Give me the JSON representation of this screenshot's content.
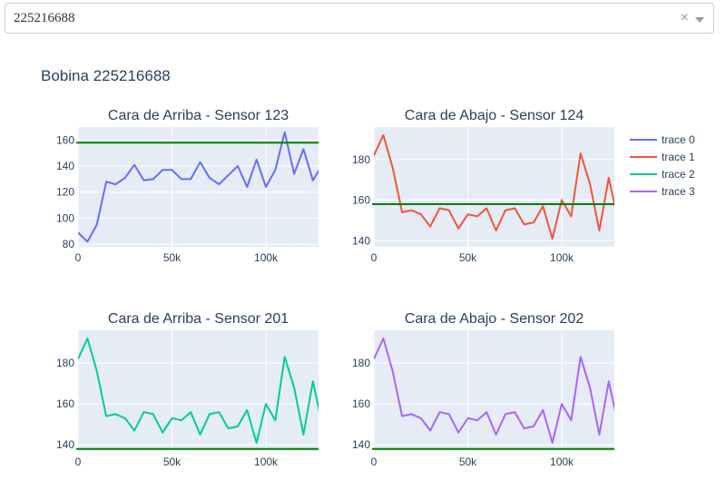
{
  "dropdown": {
    "value": "225216688",
    "clear_glyph": "×",
    "arrow_icon": "caret-down-icon"
  },
  "figure_title": "Bobina 225216688",
  "chart_data": [
    {
      "type": "line",
      "title": "Cara de Arriba - Sensor 123",
      "series": [
        {
          "name": "trace 0",
          "color": "#636efa",
          "x": [
            0,
            5000,
            10000,
            15000,
            20000,
            25000,
            30000,
            35000,
            40000,
            45000,
            50000,
            55000,
            60000,
            65000,
            70000,
            75000,
            80000,
            85000,
            90000,
            95000,
            100000,
            105000,
            110000,
            115000,
            120000,
            125000,
            130000
          ],
          "y": [
            89,
            82,
            95,
            128,
            126,
            131,
            141,
            129,
            130,
            137,
            137,
            130,
            130,
            143,
            131,
            126,
            133,
            140,
            124,
            145,
            124,
            137,
            166,
            134,
            153,
            129,
            141
          ]
        }
      ],
      "threshold": 158,
      "threshold_color": "#008000",
      "xlim": [
        0,
        128000
      ],
      "ylim": [
        78,
        170
      ],
      "xticks": [
        {
          "v": 0,
          "label": "0"
        },
        {
          "v": 50000,
          "label": "50k"
        },
        {
          "v": 100000,
          "label": "100k"
        }
      ],
      "yticks": [
        {
          "v": 80,
          "label": "80"
        },
        {
          "v": 100,
          "label": "100"
        },
        {
          "v": 120,
          "label": "120"
        },
        {
          "v": 140,
          "label": "140"
        },
        {
          "v": 160,
          "label": "160"
        }
      ]
    },
    {
      "type": "line",
      "title": "Cara de Abajo - Sensor 124",
      "series": [
        {
          "name": "trace 1",
          "color": "#ef553b",
          "x": [
            0,
            5000,
            10000,
            15000,
            20000,
            25000,
            30000,
            35000,
            40000,
            45000,
            50000,
            55000,
            60000,
            65000,
            70000,
            75000,
            80000,
            85000,
            90000,
            95000,
            100000,
            105000,
            110000,
            115000,
            120000,
            125000,
            130000
          ],
          "y": [
            182,
            192,
            176,
            154,
            155,
            153,
            147,
            156,
            155,
            146,
            153,
            152,
            156,
            145,
            155,
            156,
            148,
            149,
            157,
            141,
            160,
            152,
            183,
            168,
            145,
            171,
            150
          ]
        }
      ],
      "threshold": 158,
      "threshold_color": "#008000",
      "xlim": [
        0,
        128000
      ],
      "ylim": [
        137,
        196
      ],
      "xticks": [
        {
          "v": 0,
          "label": "0"
        },
        {
          "v": 50000,
          "label": "50k"
        },
        {
          "v": 100000,
          "label": "100k"
        }
      ],
      "yticks": [
        {
          "v": 140,
          "label": "140"
        },
        {
          "v": 160,
          "label": "160"
        },
        {
          "v": 180,
          "label": "180"
        }
      ]
    },
    {
      "type": "line",
      "title": "Cara de Arriba - Sensor 201",
      "series": [
        {
          "name": "trace 2",
          "color": "#00cc96",
          "x": [
            0,
            5000,
            10000,
            15000,
            20000,
            25000,
            30000,
            35000,
            40000,
            45000,
            50000,
            55000,
            60000,
            65000,
            70000,
            75000,
            80000,
            85000,
            90000,
            95000,
            100000,
            105000,
            110000,
            115000,
            120000,
            125000,
            130000
          ],
          "y": [
            182,
            192,
            176,
            154,
            155,
            153,
            147,
            156,
            155,
            146,
            153,
            152,
            156,
            145,
            155,
            156,
            148,
            149,
            157,
            141,
            160,
            152,
            183,
            168,
            145,
            171,
            150
          ]
        }
      ],
      "threshold": 138,
      "threshold_color": "#008000",
      "xlim": [
        0,
        128000
      ],
      "ylim": [
        137,
        196
      ],
      "xticks": [
        {
          "v": 0,
          "label": "0"
        },
        {
          "v": 50000,
          "label": "50k"
        },
        {
          "v": 100000,
          "label": "100k"
        }
      ],
      "yticks": [
        {
          "v": 140,
          "label": "140"
        },
        {
          "v": 160,
          "label": "160"
        },
        {
          "v": 180,
          "label": "180"
        }
      ]
    },
    {
      "type": "line",
      "title": "Cara de Abajo - Sensor 202",
      "series": [
        {
          "name": "trace 3",
          "color": "#ab63fa",
          "x": [
            0,
            5000,
            10000,
            15000,
            20000,
            25000,
            30000,
            35000,
            40000,
            45000,
            50000,
            55000,
            60000,
            65000,
            70000,
            75000,
            80000,
            85000,
            90000,
            95000,
            100000,
            105000,
            110000,
            115000,
            120000,
            125000,
            130000
          ],
          "y": [
            182,
            192,
            176,
            154,
            155,
            153,
            147,
            156,
            155,
            146,
            153,
            152,
            156,
            145,
            155,
            156,
            148,
            149,
            157,
            141,
            160,
            152,
            183,
            168,
            145,
            171,
            150
          ]
        }
      ],
      "threshold": 138,
      "threshold_color": "#008000",
      "xlim": [
        0,
        128000
      ],
      "ylim": [
        137,
        196
      ],
      "xticks": [
        {
          "v": 0,
          "label": "0"
        },
        {
          "v": 50000,
          "label": "50k"
        },
        {
          "v": 100000,
          "label": "100k"
        }
      ],
      "yticks": [
        {
          "v": 140,
          "label": "140"
        },
        {
          "v": 160,
          "label": "160"
        },
        {
          "v": 180,
          "label": "180"
        }
      ]
    }
  ],
  "legend": {
    "placement": "top-right",
    "items": [
      {
        "name": "trace 0",
        "color": "#636efa"
      },
      {
        "name": "trace 1",
        "color": "#ef553b"
      },
      {
        "name": "trace 2",
        "color": "#00cc96"
      },
      {
        "name": "trace 3",
        "color": "#ab63fa"
      }
    ]
  },
  "plot_background": "#e5ecf6",
  "grid": true
}
